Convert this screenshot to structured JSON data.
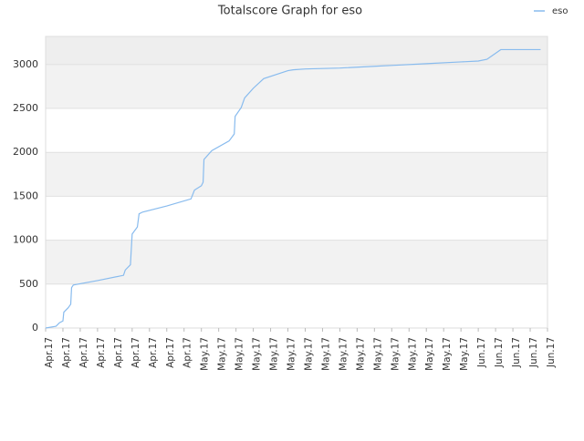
{
  "chart_data": {
    "type": "line",
    "title": "Totalscore Graph for eso",
    "series": [
      {
        "name": "eso",
        "color": "#88bbee",
        "x": [
          0,
          0.6,
          0.8,
          1.0,
          1.05,
          1.3,
          1.45,
          1.5,
          1.6,
          3.0,
          4.5,
          4.6,
          4.9,
          5.0,
          5.3,
          5.4,
          5.6,
          7.0,
          8.4,
          8.6,
          9.0,
          9.1,
          9.15,
          9.6,
          10.6,
          10.9,
          10.95,
          11.3,
          11.5,
          12.0,
          12.6,
          14.0,
          14.3,
          15,
          17,
          19,
          20,
          22,
          24,
          25,
          25.5,
          26.3,
          28.6
        ],
        "values": [
          0,
          20,
          60,
          80,
          180,
          230,
          270,
          460,
          490,
          540,
          600,
          660,
          720,
          1070,
          1150,
          1300,
          1320,
          1390,
          1470,
          1570,
          1620,
          1660,
          1920,
          2020,
          2130,
          2210,
          2410,
          2510,
          2620,
          2730,
          2840,
          2930,
          2940,
          2950,
          2960,
          2980,
          2990,
          3010,
          3030,
          3040,
          3060,
          3170,
          3170
        ]
      }
    ],
    "xlim": [
      0,
      29
    ],
    "xticks": [
      {
        "value": 0,
        "label": "Apr.17"
      },
      {
        "value": 1,
        "label": "Apr.17"
      },
      {
        "value": 2,
        "label": "Apr.17"
      },
      {
        "value": 3,
        "label": "Apr.17"
      },
      {
        "value": 4,
        "label": "Apr.17"
      },
      {
        "value": 5,
        "label": "Apr.17"
      },
      {
        "value": 6,
        "label": "Apr.17"
      },
      {
        "value": 7,
        "label": "Apr.17"
      },
      {
        "value": 8,
        "label": "Apr.17"
      },
      {
        "value": 9,
        "label": "May.17"
      },
      {
        "value": 10,
        "label": "May.17"
      },
      {
        "value": 11,
        "label": "May.17"
      },
      {
        "value": 12,
        "label": "May.17"
      },
      {
        "value": 13,
        "label": "May.17"
      },
      {
        "value": 14,
        "label": "May.17"
      },
      {
        "value": 15,
        "label": "May.17"
      },
      {
        "value": 16,
        "label": "May.17"
      },
      {
        "value": 17,
        "label": "May.17"
      },
      {
        "value": 18,
        "label": "May.17"
      },
      {
        "value": 19,
        "label": "May.17"
      },
      {
        "value": 20,
        "label": "May.17"
      },
      {
        "value": 21,
        "label": "May.17"
      },
      {
        "value": 22,
        "label": "May.17"
      },
      {
        "value": 23,
        "label": "May.17"
      },
      {
        "value": 24,
        "label": "May.17"
      },
      {
        "value": 25,
        "label": "Jun.17"
      },
      {
        "value": 26,
        "label": "Jun.17"
      },
      {
        "value": 27,
        "label": "Jun.17"
      },
      {
        "value": 28,
        "label": "Jun.17"
      },
      {
        "value": 29,
        "label": "Jun.17"
      }
    ],
    "ylim": [
      0,
      3320
    ],
    "yticks": [
      0,
      500,
      1000,
      1500,
      2000,
      2500,
      3000
    ],
    "grid": true,
    "legend": "top-right"
  }
}
